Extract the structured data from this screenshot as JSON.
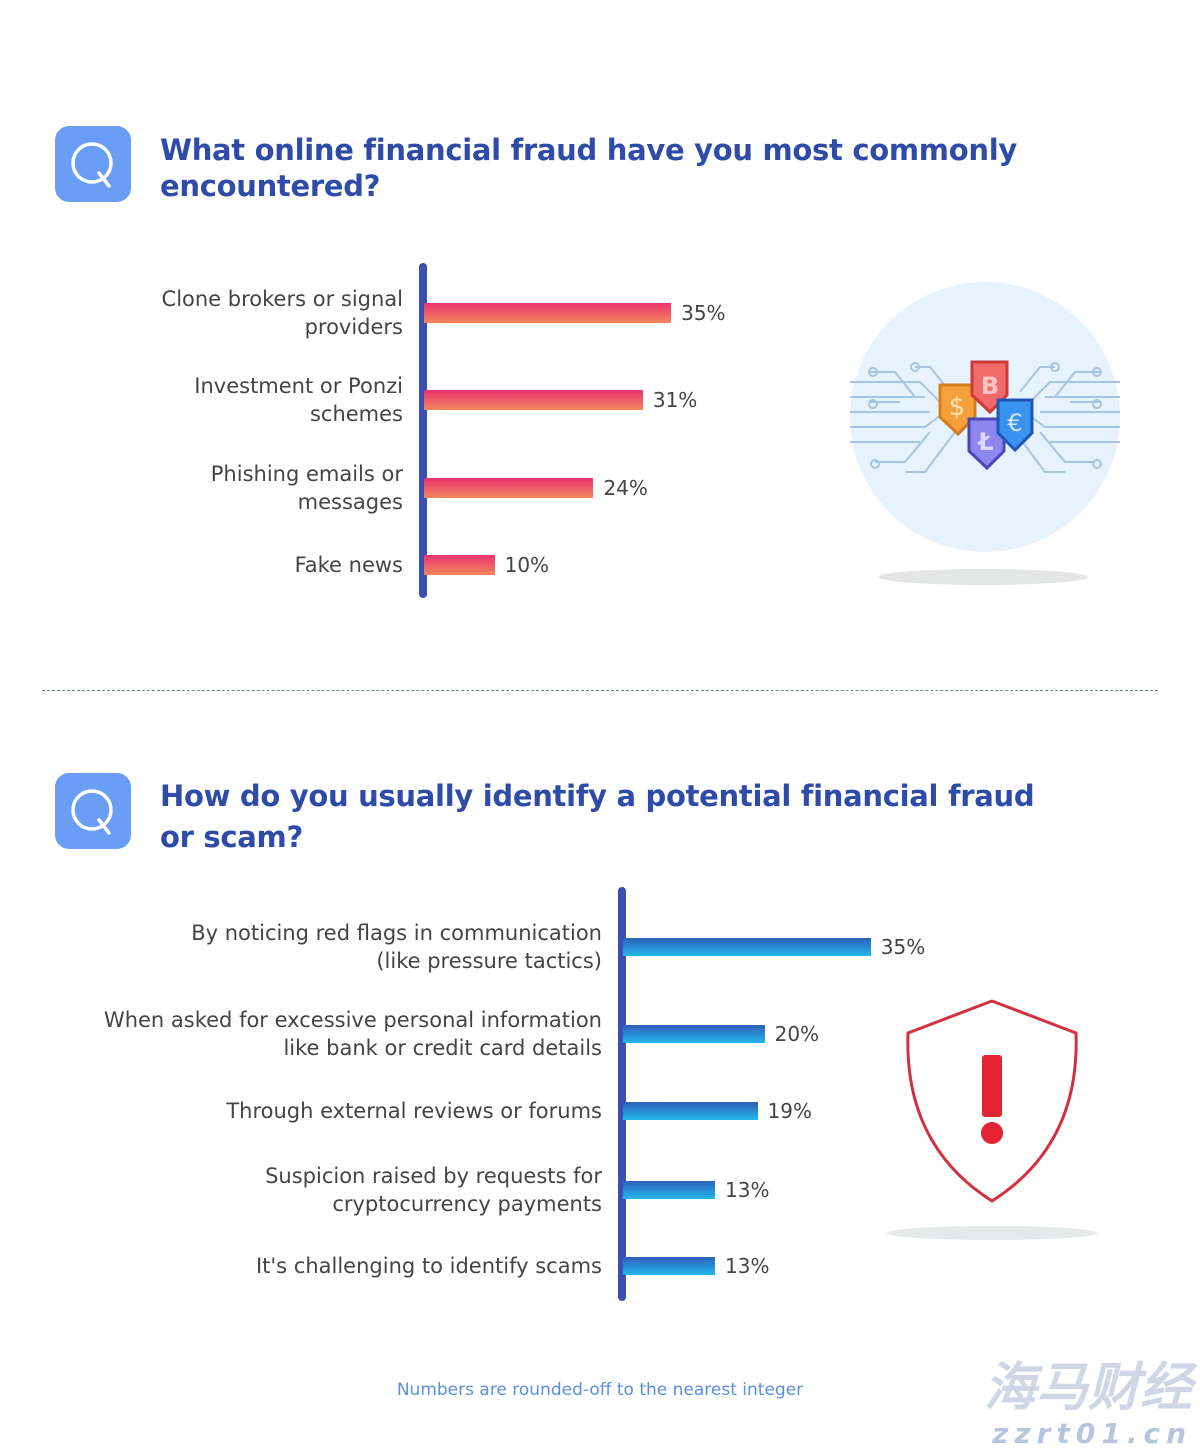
{
  "chart_data": [
    {
      "type": "bar",
      "orientation": "horizontal",
      "title": "What online financial fraud have you most commonly encountered?",
      "categories": [
        "Clone brokers or signal providers",
        "Investment or Ponzi schemes",
        "Phishing emails or messages",
        "Fake news"
      ],
      "values": [
        35,
        31,
        24,
        10
      ],
      "value_labels": [
        "35%",
        "31%",
        "24%",
        "10%"
      ],
      "unit": "%",
      "grid": false,
      "colors": {
        "bar_top": "#e8336f",
        "bar_bottom": "#f5865c",
        "axis": "#3a4fb0"
      }
    },
    {
      "type": "bar",
      "orientation": "horizontal",
      "title": "How do you usually identify a potential financial fraud or scam?",
      "categories": [
        "By noticing red flags in communication (like pressure tactics)",
        "When asked for excessive personal information like bank or credit card details",
        "Through external reviews or forums",
        "Suspicion raised by requests for cryptocurrency payments",
        "It's challenging to identify scams"
      ],
      "values": [
        35,
        20,
        19,
        13,
        13
      ],
      "value_labels": [
        "35%",
        "20%",
        "19%",
        "13%",
        "13%"
      ],
      "unit": "%",
      "grid": false,
      "colors": {
        "bar_top": "#2f5fb8",
        "bar_bottom": "#22b8ea",
        "axis": "#3a4fb0"
      }
    }
  ],
  "q1": {
    "icon": "q-icon",
    "title_line1": "What online financial fraud have you most commonly",
    "title_line2": "encountered?",
    "labels": [
      [
        "Clone brokers or signal",
        "providers"
      ],
      [
        "Investment or Ponzi",
        "schemes"
      ],
      [
        "Phishing emails or",
        "messages"
      ],
      [
        "Fake news"
      ]
    ],
    "illustration": "crypto-currency-circuit-icon"
  },
  "q2": {
    "icon": "q-icon",
    "title_line1": "How do you usually identify a potential financial fraud",
    "title_line2": "or scam?",
    "labels": [
      [
        "By noticing red flags in communication",
        "(like pressure tactics)"
      ],
      [
        "When asked for excessive personal information",
        "like bank or credit card details"
      ],
      [
        "Through external reviews or forums"
      ],
      [
        "Suspicion raised by requests for",
        "cryptocurrency payments"
      ],
      [
        "It's challenging to identify scams"
      ]
    ],
    "illustration": "warning-shield-icon"
  },
  "footnote": "Numbers are rounded-off to the nearest integer",
  "watermark": {
    "line1": "海马财经",
    "line2": "zzrt01.cn"
  }
}
